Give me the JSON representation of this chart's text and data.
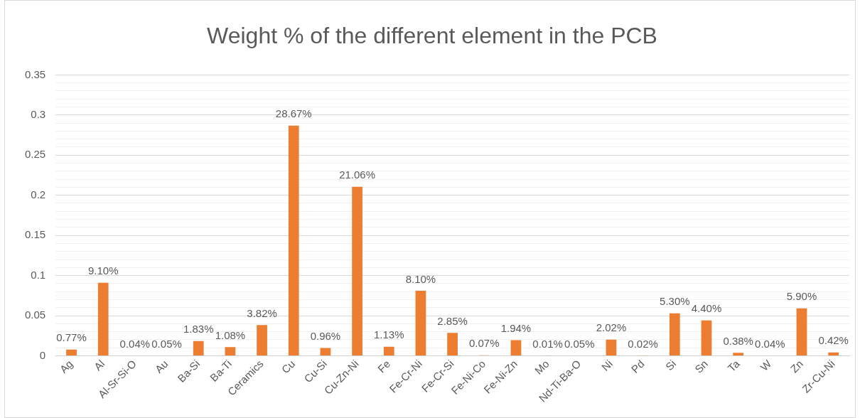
{
  "chart_data": {
    "type": "bar",
    "title": "Weight % of the different element in the PCB",
    "categories": [
      "Ag",
      "Al",
      "Al-Sr-Si-O",
      "Au",
      "Ba-Si",
      "Ba-Ti",
      "Ceramics",
      "Cu",
      "Cu-Si",
      "Cu-Zn-Ni",
      "Fe",
      "Fe-Cr-Ni",
      "Fe-Cr-Si",
      "Fe-Ni-Co",
      "Fe-Ni-Zn",
      "Mo",
      "Nd-Ti-Ba-O",
      "Ni",
      "Pd",
      "Si",
      "Sn",
      "Ta",
      "W",
      "Zn",
      "Zr-Cu-Ni"
    ],
    "values": [
      0.0077,
      0.091,
      0.0004,
      0.0005,
      0.0183,
      0.0108,
      0.0382,
      0.2867,
      0.0096,
      0.2106,
      0.0113,
      0.081,
      0.0285,
      0.0007,
      0.0194,
      0.0001,
      0.0005,
      0.0202,
      0.0002,
      0.053,
      0.044,
      0.0038,
      0.0004,
      0.059,
      0.0042
    ],
    "value_labels": [
      "0.77%",
      "9.10%",
      "0.04%",
      "0.05%",
      "1.83%",
      "1.08%",
      "3.82%",
      "28.67%",
      "0.96%",
      "21.06%",
      "1.13%",
      "8.10%",
      "2.85%",
      "0.07%",
      "1.94%",
      "0.01%",
      "0.05%",
      "2.02%",
      "0.02%",
      "5.30%",
      "4.40%",
      "0.38%",
      "0.04%",
      "5.90%",
      "0.42%"
    ],
    "color": "#ed7d31",
    "ylim": [
      0,
      0.35
    ],
    "yticks": [
      0,
      {
        "value": 0.01,
        "label": null
      },
      {
        "value": 0.02,
        "label": null
      },
      {
        "value": 0.03,
        "label": null
      },
      {
        "value": 0.04,
        "label": null
      },
      0.05,
      {
        "value": 0.06,
        "label": null
      },
      {
        "value": 0.07,
        "label": null
      },
      {
        "value": 0.08,
        "label": null
      },
      {
        "value": 0.09,
        "label": null
      },
      0.1,
      {
        "value": 0.11,
        "label": null
      },
      {
        "value": 0.12,
        "label": null
      },
      {
        "value": 0.13,
        "label": null
      },
      {
        "value": 0.14,
        "label": null
      },
      0.15,
      {
        "value": 0.16,
        "label": null
      },
      {
        "value": 0.17,
        "label": null
      },
      {
        "value": 0.18,
        "label": null
      },
      {
        "value": 0.19,
        "label": null
      },
      0.2,
      {
        "value": 0.21,
        "label": null
      },
      {
        "value": 0.22,
        "label": null
      },
      {
        "value": 0.23,
        "label": null
      },
      {
        "value": 0.24,
        "label": null
      },
      0.25,
      {
        "value": 0.26,
        "label": null
      },
      {
        "value": 0.27,
        "label": null
      },
      {
        "value": 0.28,
        "label": null
      },
      {
        "value": 0.29,
        "label": null
      },
      0.3,
      {
        "value": 0.31,
        "label": null
      },
      {
        "value": 0.32,
        "label": null
      },
      {
        "value": 0.33,
        "label": null
      },
      {
        "value": 0.34,
        "label": null
      },
      0.35
    ],
    "grid": "y"
  }
}
